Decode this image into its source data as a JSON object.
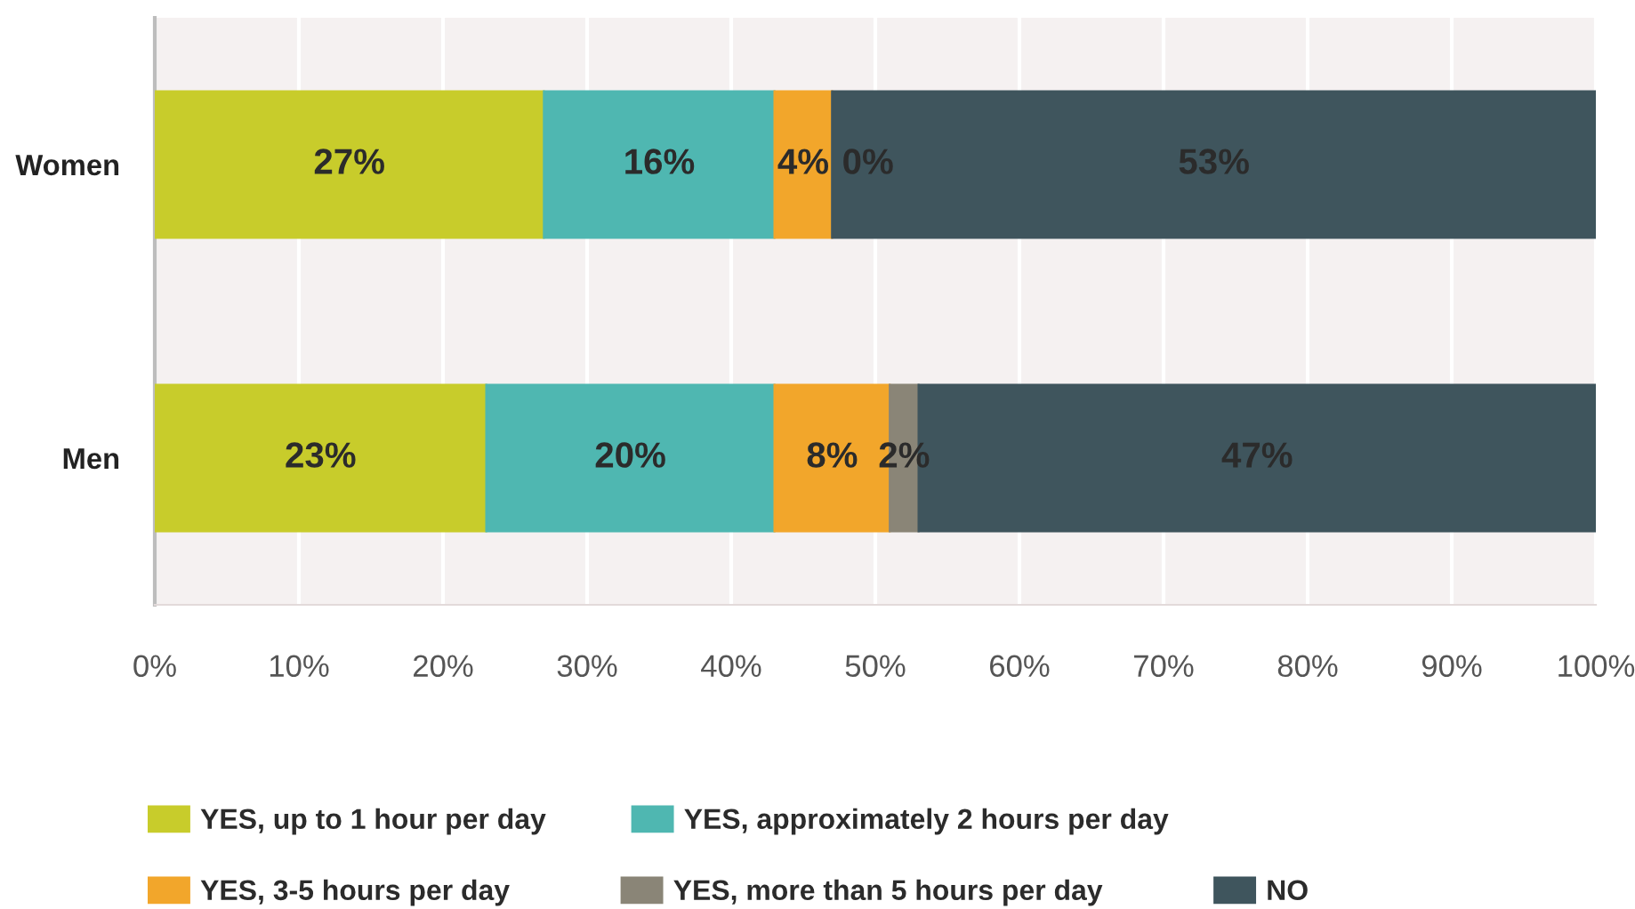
{
  "chart_data": {
    "type": "bar",
    "orientation": "horizontal",
    "stacked": true,
    "categories": [
      "Women",
      "Men"
    ],
    "series": [
      {
        "name": "YES, up to 1 hour per day",
        "color": "#c8cc2b",
        "values": [
          27,
          23
        ],
        "value_labels": [
          "27%",
          "23%"
        ]
      },
      {
        "name": "YES, approximately 2 hours per day",
        "color": "#4fb7b1",
        "values": [
          16,
          20
        ],
        "value_labels": [
          "16%",
          "20%"
        ]
      },
      {
        "name": "YES, 3-5 hours per day",
        "color": "#f2a62b",
        "values": [
          4,
          8
        ],
        "value_labels": [
          "4%",
          "8%"
        ]
      },
      {
        "name": "YES, more than 5 hours per day",
        "color": "#8a8577",
        "values": [
          0,
          2
        ],
        "value_labels": [
          "0%",
          "2%"
        ]
      },
      {
        "name": "NO",
        "color": "#3f555d",
        "values": [
          53,
          47
        ],
        "value_labels": [
          "53%",
          "47%"
        ]
      }
    ],
    "xlim": [
      0,
      100
    ],
    "xticks": [
      {
        "value": 0,
        "label": "0%"
      },
      {
        "value": 10,
        "label": "10%"
      },
      {
        "value": 20,
        "label": "20%"
      },
      {
        "value": 30,
        "label": "30%"
      },
      {
        "value": 40,
        "label": "40%"
      },
      {
        "value": 50,
        "label": "50%"
      },
      {
        "value": 60,
        "label": "60%"
      },
      {
        "value": 70,
        "label": "70%"
      },
      {
        "value": 80,
        "label": "80%"
      },
      {
        "value": 90,
        "label": "90%"
      },
      {
        "value": 100,
        "label": "100%"
      }
    ],
    "grid": "x",
    "legend": "bottom"
  }
}
